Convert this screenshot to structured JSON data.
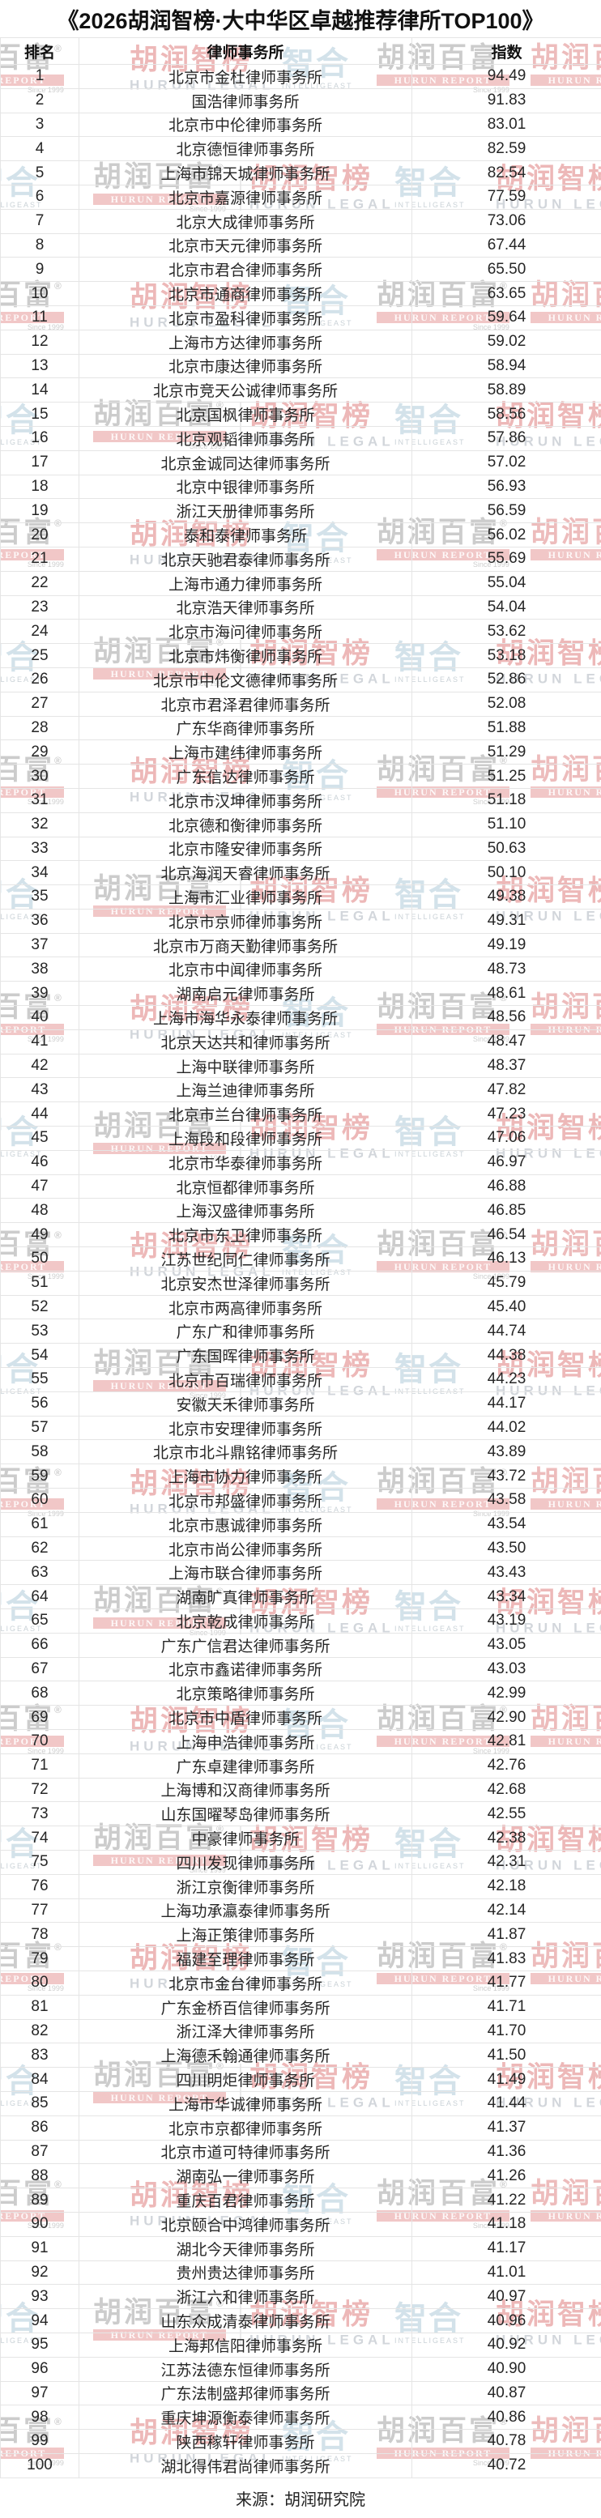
{
  "chart_data": {
    "type": "table",
    "title": "《2026胡润智榜·大中华区卓越推荐律所TOP100》",
    "columns": [
      "排名",
      "律师事务所",
      "指数"
    ],
    "rows": [
      [
        1,
        "北京市金杜律师事务所",
        "94.49"
      ],
      [
        2,
        "国浩律师事务所",
        "91.83"
      ],
      [
        3,
        "北京市中伦律师事务所",
        "83.01"
      ],
      [
        4,
        "北京德恒律师事务所",
        "82.59"
      ],
      [
        5,
        "上海市锦天城律师事务所",
        "82.54"
      ],
      [
        6,
        "北京市嘉源律师事务所",
        "77.59"
      ],
      [
        7,
        "北京大成律师事务所",
        "73.06"
      ],
      [
        8,
        "北京市天元律师事务所",
        "67.44"
      ],
      [
        9,
        "北京市君合律师事务所",
        "65.50"
      ],
      [
        10,
        "北京市通商律师事务所",
        "63.65"
      ],
      [
        11,
        "北京市盈科律师事务所",
        "59.64"
      ],
      [
        12,
        "上海市方达律师事务所",
        "59.02"
      ],
      [
        13,
        "北京市康达律师事务所",
        "58.94"
      ],
      [
        14,
        "北京市竞天公诚律师事务所",
        "58.89"
      ],
      [
        15,
        "北京国枫律师事务所",
        "58.56"
      ],
      [
        16,
        "北京观韬律师事务所",
        "57.86"
      ],
      [
        17,
        "北京金诚同达律师事务所",
        "57.02"
      ],
      [
        18,
        "北京中银律师事务所",
        "56.93"
      ],
      [
        19,
        "浙江天册律师事务所",
        "56.59"
      ],
      [
        20,
        "泰和泰律师事务所",
        "56.02"
      ],
      [
        21,
        "北京天驰君泰律师事务所",
        "55.69"
      ],
      [
        22,
        "上海市通力律师事务所",
        "55.04"
      ],
      [
        23,
        "北京浩天律师事务所",
        "54.04"
      ],
      [
        24,
        "北京市海问律师事务所",
        "53.62"
      ],
      [
        25,
        "北京市炜衡律师事务所",
        "53.18"
      ],
      [
        26,
        "北京市中伦文德律师事务所",
        "52.86"
      ],
      [
        27,
        "北京市君泽君律师事务所",
        "52.08"
      ],
      [
        28,
        "广东华商律师事务所",
        "51.88"
      ],
      [
        29,
        "上海市建纬律师事务所",
        "51.29"
      ],
      [
        30,
        "广东信达律师事务所",
        "51.25"
      ],
      [
        31,
        "北京市汉坤律师事务所",
        "51.18"
      ],
      [
        32,
        "北京德和衡律师事务所",
        "51.10"
      ],
      [
        33,
        "北京市隆安律师事务所",
        "50.63"
      ],
      [
        34,
        "北京海润天睿律师事务所",
        "50.10"
      ],
      [
        35,
        "上海市汇业律师事务所",
        "49.38"
      ],
      [
        36,
        "北京市京师律师事务所",
        "49.31"
      ],
      [
        37,
        "北京市万商天勤律师事务所",
        "49.19"
      ],
      [
        38,
        "北京市中闻律师事务所",
        "48.73"
      ],
      [
        39,
        "湖南启元律师事务所",
        "48.61"
      ],
      [
        40,
        "上海市海华永泰律师事务所",
        "48.56"
      ],
      [
        41,
        "北京天达共和律师事务所",
        "48.47"
      ],
      [
        42,
        "上海中联律师事务所",
        "48.37"
      ],
      [
        43,
        "上海兰迪律师事务所",
        "47.82"
      ],
      [
        44,
        "北京市兰台律师事务所",
        "47.23"
      ],
      [
        45,
        "上海段和段律师事务所",
        "47.06"
      ],
      [
        46,
        "北京市华泰律师事务所",
        "46.97"
      ],
      [
        47,
        "北京恒都律师事务所",
        "46.88"
      ],
      [
        48,
        "上海汉盛律师事务所",
        "46.85"
      ],
      [
        49,
        "北京市东卫律师事务所",
        "46.54"
      ],
      [
        50,
        "江苏世纪同仁律师事务所",
        "46.13"
      ],
      [
        51,
        "北京安杰世泽律师事务所",
        "45.79"
      ],
      [
        52,
        "北京市两高律师事务所",
        "45.40"
      ],
      [
        53,
        "广东广和律师事务所",
        "44.74"
      ],
      [
        54,
        "广东国晖律师事务所",
        "44.38"
      ],
      [
        55,
        "北京市百瑞律师事务所",
        "44.23"
      ],
      [
        56,
        "安徽天禾律师事务所",
        "44.17"
      ],
      [
        57,
        "北京市安理律师事务所",
        "44.02"
      ],
      [
        58,
        "北京市北斗鼎铭律师事务所",
        "43.89"
      ],
      [
        59,
        "上海市协力律师事务所",
        "43.72"
      ],
      [
        60,
        "北京市邦盛律师事务所",
        "43.58"
      ],
      [
        61,
        "北京市惠诚律师事务所",
        "43.54"
      ],
      [
        62,
        "北京市尚公律师事务所",
        "43.50"
      ],
      [
        63,
        "上海市联合律师事务所",
        "43.43"
      ],
      [
        64,
        "湖南旷真律师事务所",
        "43.34"
      ],
      [
        65,
        "北京乾成律师事务所",
        "43.19"
      ],
      [
        66,
        "广东广信君达律师事务所",
        "43.05"
      ],
      [
        67,
        "北京市鑫诺律师事务所",
        "43.03"
      ],
      [
        68,
        "北京策略律师事务所",
        "42.99"
      ],
      [
        69,
        "北京市中盾律师事务所",
        "42.90"
      ],
      [
        70,
        "上海申浩律师事务所",
        "42.81"
      ],
      [
        71,
        "广东卓建律师事务所",
        "42.76"
      ],
      [
        72,
        "上海博和汉商律师事务所",
        "42.68"
      ],
      [
        73,
        "山东国曜琴岛律师事务所",
        "42.55"
      ],
      [
        74,
        "中豪律师事务所",
        "42.38"
      ],
      [
        75,
        "四川发现律师事务所",
        "42.31"
      ],
      [
        76,
        "浙江京衡律师事务所",
        "42.18"
      ],
      [
        77,
        "上海功承瀛泰律师事务所",
        "42.14"
      ],
      [
        78,
        "上海正策律师事务所",
        "41.87"
      ],
      [
        79,
        "福建至理律师事务所",
        "41.83"
      ],
      [
        80,
        "北京市金台律师事务所",
        "41.77"
      ],
      [
        81,
        "广东金桥百信律师事务所",
        "41.71"
      ],
      [
        82,
        "浙江泽大律师事务所",
        "41.70"
      ],
      [
        83,
        "上海德禾翰通律师事务所",
        "41.50"
      ],
      [
        84,
        "四川明炬律师事务所",
        "41.49"
      ],
      [
        85,
        "上海市华诚律师事务所",
        "41.44"
      ],
      [
        86,
        "北京市京都律师事务所",
        "41.37"
      ],
      [
        87,
        "北京市道可特律师事务所",
        "41.36"
      ],
      [
        88,
        "湖南弘一律师事务所",
        "41.26"
      ],
      [
        89,
        "重庆百君律师事务所",
        "41.22"
      ],
      [
        90,
        "北京颐合中鸿律师事务所",
        "41.18"
      ],
      [
        91,
        "湖北今天律师事务所",
        "41.17"
      ],
      [
        92,
        "贵州贵达律师事务所",
        "41.01"
      ],
      [
        93,
        "浙江六和律师事务所",
        "40.97"
      ],
      [
        94,
        "山东众成清泰律师事务所",
        "40.96"
      ],
      [
        95,
        "上海邦信阳律师事务所",
        "40.92"
      ],
      [
        96,
        "江苏法德东恒律师事务所",
        "40.90"
      ],
      [
        97,
        "广东法制盛邦律师事务所",
        "40.87"
      ],
      [
        98,
        "重庆坤源衡泰律师事务所",
        "40.86"
      ],
      [
        99,
        "陕西稼轩律师事务所",
        "40.78"
      ],
      [
        100,
        "湖北得伟君尚律师事务所",
        "40.72"
      ]
    ],
    "source": "来源：胡润研究院"
  },
  "watermarks": {
    "hurun_report_cn": "胡润百富",
    "hurun_report_reg": "®",
    "hurun_report_en": "HURUN REPORT",
    "hurun_report_since": "Since 1999",
    "hurun_legal_cn": "胡润智榜",
    "hurun_legal_en": "HURUN LEGAL",
    "intelligeast_cn": "智合",
    "intelligeast_en": "INTELLIGEAST"
  },
  "colors": {
    "watermark_red": "#cd4e4e",
    "watermark_gray": "#555555",
    "watermark_blue": "#96b9cd",
    "table_border": "#e5e5e5",
    "text": "#262626"
  }
}
